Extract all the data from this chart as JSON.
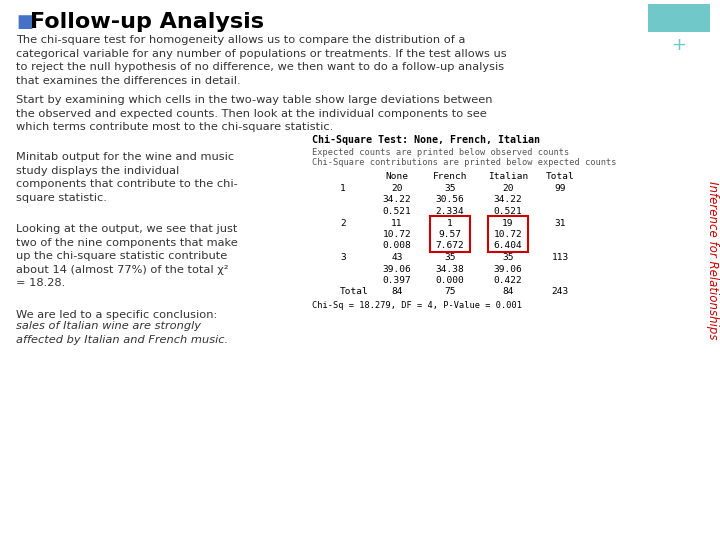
{
  "title": "Follow-up Analysis",
  "title_color": "#000000",
  "title_bullet_color": "#4472c4",
  "bg_color": "#ffffff",
  "sidebar_color": "#70c8c8",
  "sidebar_plus_color": "#70c8c8",
  "sidebar_text": "Inference for Relationships",
  "sidebar_text_color": "#cc0000",
  "para1": "The chi-square test for homogeneity allows us to compare the distribution of a\ncategorical variable for any number of populations or treatments. If the test allows us\nto reject the null hypothesis of no difference, we then want to do a follow-up analysis\nthat examines the differences in detail.",
  "para2": "Start by examining which cells in the two-way table show large deviations between\nthe observed and expected counts. Then look at the individual components to see\nwhich terms contribute most to the chi-square statistic.",
  "para3_left": "Minitab output for the wine and music\nstudy displays the individual\ncomponents that contribute to the chi-\nsquare statistic.",
  "para4_left_normal": "Looking at the output, we see that just\ntwo of the nine components that make\nup the chi-square statistic contribute\nabout 14 (almost 77%) of the total χ²\n= 18.28.",
  "para5_normal": "We are led to a specific conclusion:",
  "para5_italic": "sales of Italian wine are strongly\naffected by Italian and French music.",
  "table_title": "Chi-Square Test: None, French, Italian",
  "table_line1": "Expected counts are printed below observed counts",
  "table_line2": "Chi-Square contributions are printed below expected counts",
  "col_headers": [
    "None",
    "French",
    "Italian",
    "Total"
  ],
  "highlight_color": "#cc0000",
  "text_color": "#333333",
  "mono_color": "#444444"
}
